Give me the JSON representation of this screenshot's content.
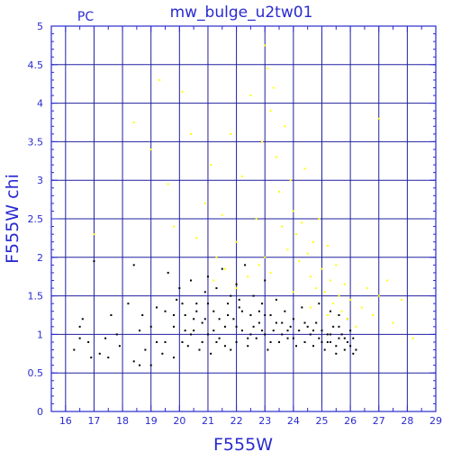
{
  "chart_data": {
    "type": "scatter",
    "title": "mw_bulge_u2tw01",
    "corner_label": "PC",
    "xlabel": "F555W",
    "ylabel": "F555W chi",
    "xlim": [
      15.5,
      29
    ],
    "ylim": [
      0,
      5
    ],
    "x_ticks": [
      16,
      17,
      18,
      19,
      20,
      21,
      22,
      23,
      24,
      25,
      26,
      27,
      28,
      29
    ],
    "y_ticks": [
      0,
      0.5,
      1,
      1.5,
      2,
      2.5,
      3,
      3.5,
      4,
      4.5,
      5
    ],
    "grid": true,
    "colors": {
      "frame": "#2a2ad0",
      "grid": "#2020a0",
      "text": "#2a2ad0",
      "good": "#000000",
      "rejected": "#ffff00"
    },
    "series": [
      {
        "color": "#000000",
        "points": [
          [
            16.3,
            0.8
          ],
          [
            16.5,
            1.1
          ],
          [
            16.6,
            1.2
          ],
          [
            16.5,
            0.95
          ],
          [
            16.8,
            0.9
          ],
          [
            16.9,
            0.7
          ],
          [
            17.0,
            1.95
          ],
          [
            17.2,
            0.75
          ],
          [
            17.4,
            0.95
          ],
          [
            17.5,
            0.7
          ],
          [
            17.8,
            1.0
          ],
          [
            17.6,
            1.25
          ],
          [
            17.9,
            0.85
          ],
          [
            18.2,
            1.4
          ],
          [
            18.4,
            0.65
          ],
          [
            18.4,
            1.9
          ],
          [
            18.6,
            1.05
          ],
          [
            18.7,
            1.25
          ],
          [
            18.8,
            0.8
          ],
          [
            18.6,
            0.6
          ],
          [
            19.0,
            0.6
          ],
          [
            19.0,
            1.1
          ],
          [
            19.2,
            1.35
          ],
          [
            19.2,
            0.9
          ],
          [
            19.4,
            0.75
          ],
          [
            19.5,
            1.3
          ],
          [
            19.6,
            1.8
          ],
          [
            19.8,
            1.1
          ],
          [
            19.8,
            0.7
          ],
          [
            19.9,
            1.45
          ],
          [
            20.0,
            1.6
          ],
          [
            20.1,
            0.9
          ],
          [
            20.2,
            1.25
          ],
          [
            20.3,
            0.85
          ],
          [
            20.4,
            1.7
          ],
          [
            20.5,
            1.05
          ],
          [
            20.6,
            1.4
          ],
          [
            20.7,
            0.8
          ],
          [
            20.8,
            1.15
          ],
          [
            20.9,
            1.55
          ],
          [
            21.0,
            1.0
          ],
          [
            21.0,
            1.75
          ],
          [
            21.1,
            0.75
          ],
          [
            21.2,
            1.3
          ],
          [
            21.3,
            1.6
          ],
          [
            21.4,
            0.95
          ],
          [
            21.5,
            1.85
          ],
          [
            21.6,
            1.1
          ],
          [
            21.7,
            1.4
          ],
          [
            21.8,
            0.8
          ],
          [
            21.9,
            1.2
          ],
          [
            22.0,
            1.65
          ],
          [
            22.0,
            0.9
          ],
          [
            22.1,
            1.35
          ],
          [
            22.2,
            1.05
          ],
          [
            22.3,
            1.9
          ],
          [
            22.4,
            0.85
          ],
          [
            22.5,
            1.25
          ],
          [
            22.6,
            1.5
          ],
          [
            22.7,
            0.95
          ],
          [
            22.8,
            1.15
          ],
          [
            22.9,
            1.4
          ],
          [
            23.0,
            1.0
          ],
          [
            23.0,
            1.7
          ],
          [
            23.1,
            0.8
          ],
          [
            23.2,
            1.25
          ],
          [
            23.3,
            1.05
          ],
          [
            23.4,
            1.45
          ],
          [
            23.5,
            0.9
          ],
          [
            23.6,
            1.15
          ],
          [
            23.7,
            1.3
          ],
          [
            23.8,
            0.95
          ],
          [
            23.9,
            1.1
          ],
          [
            24.0,
            1.2
          ],
          [
            24.1,
            0.85
          ],
          [
            24.2,
            1.05
          ],
          [
            24.3,
            1.35
          ],
          [
            24.4,
            0.9
          ],
          [
            24.5,
            1.1
          ],
          [
            24.6,
            1.0
          ],
          [
            24.7,
            0.85
          ],
          [
            24.8,
            1.15
          ],
          [
            24.9,
            0.95
          ],
          [
            25.0,
            1.05
          ],
          [
            25.1,
            0.8
          ],
          [
            25.2,
            1.0
          ],
          [
            25.3,
            0.9
          ],
          [
            25.4,
            1.1
          ],
          [
            25.5,
            0.85
          ],
          [
            25.6,
            0.95
          ],
          [
            25.7,
            1.0
          ],
          [
            25.8,
            0.8
          ],
          [
            25.9,
            0.9
          ],
          [
            26.0,
            0.85
          ],
          [
            26.1,
            0.95
          ],
          [
            26.2,
            0.8
          ],
          [
            25.9,
            1.2
          ],
          [
            25.6,
            1.25
          ],
          [
            25.3,
            1.3
          ],
          [
            24.9,
            1.4
          ],
          [
            20.5,
            1.2
          ],
          [
            20.8,
            0.9
          ],
          [
            21.2,
            1.05
          ],
          [
            21.6,
            0.85
          ],
          [
            22.0,
            1.1
          ],
          [
            22.4,
            0.95
          ],
          [
            22.8,
            1.3
          ],
          [
            23.2,
            0.9
          ],
          [
            23.6,
            1.0
          ],
          [
            24.0,
            0.95
          ],
          [
            20.2,
            1.05
          ],
          [
            20.6,
            1.3
          ],
          [
            21.0,
            1.4
          ],
          [
            21.4,
            1.2
          ],
          [
            21.8,
            1.5
          ],
          [
            22.2,
            1.3
          ],
          [
            22.6,
            1.1
          ],
          [
            23.0,
            1.25
          ],
          [
            23.4,
            1.15
          ],
          [
            23.8,
            1.05
          ],
          [
            19.5,
            0.9
          ],
          [
            19.8,
            1.25
          ],
          [
            20.1,
            1.4
          ],
          [
            20.4,
            1.0
          ],
          [
            20.9,
            1.2
          ],
          [
            21.3,
            0.9
          ],
          [
            21.7,
            1.25
          ],
          [
            22.1,
            1.45
          ],
          [
            22.5,
            1.0
          ],
          [
            22.9,
            1.05
          ],
          [
            24.4,
            1.15
          ],
          [
            24.7,
            1.05
          ],
          [
            25.0,
            0.9
          ],
          [
            25.3,
            1.0
          ],
          [
            25.6,
            1.1
          ],
          [
            25.8,
            0.95
          ],
          [
            26.0,
            1.05
          ],
          [
            26.1,
            0.75
          ],
          [
            25.5,
            0.75
          ],
          [
            25.2,
            0.9
          ]
        ]
      },
      {
        "color": "#ffff00",
        "points": [
          [
            17.0,
            2.3
          ],
          [
            18.4,
            3.75
          ],
          [
            19.0,
            3.4
          ],
          [
            19.3,
            4.3
          ],
          [
            19.6,
            2.95
          ],
          [
            19.8,
            2.4
          ],
          [
            20.1,
            4.15
          ],
          [
            20.4,
            3.6
          ],
          [
            20.6,
            2.25
          ],
          [
            20.9,
            2.7
          ],
          [
            21.1,
            3.2
          ],
          [
            21.3,
            2.0
          ],
          [
            21.5,
            2.55
          ],
          [
            21.8,
            3.6
          ],
          [
            22.0,
            2.2
          ],
          [
            22.2,
            3.05
          ],
          [
            22.5,
            4.1
          ],
          [
            22.7,
            2.5
          ],
          [
            22.9,
            3.5
          ],
          [
            23.0,
            4.75
          ],
          [
            23.1,
            4.45
          ],
          [
            23.2,
            3.9
          ],
          [
            23.3,
            4.2
          ],
          [
            23.4,
            3.3
          ],
          [
            23.5,
            2.85
          ],
          [
            23.6,
            2.4
          ],
          [
            23.7,
            3.7
          ],
          [
            23.8,
            2.1
          ],
          [
            23.9,
            3.0
          ],
          [
            24.0,
            2.6
          ],
          [
            24.1,
            2.3
          ],
          [
            24.2,
            1.95
          ],
          [
            24.3,
            2.45
          ],
          [
            24.4,
            3.15
          ],
          [
            24.5,
            2.05
          ],
          [
            24.6,
            1.75
          ],
          [
            24.7,
            2.2
          ],
          [
            24.8,
            1.6
          ],
          [
            24.9,
            2.5
          ],
          [
            25.0,
            1.85
          ],
          [
            25.1,
            1.55
          ],
          [
            25.2,
            2.15
          ],
          [
            25.3,
            1.7
          ],
          [
            25.4,
            1.4
          ],
          [
            25.5,
            1.9
          ],
          [
            25.6,
            1.5
          ],
          [
            25.7,
            1.3
          ],
          [
            25.8,
            1.65
          ],
          [
            25.9,
            1.2
          ],
          [
            26.0,
            1.45
          ],
          [
            26.2,
            1.1
          ],
          [
            26.4,
            1.35
          ],
          [
            26.6,
            1.6
          ],
          [
            26.8,
            1.25
          ],
          [
            27.0,
            1.5
          ],
          [
            27.3,
            1.7
          ],
          [
            27.5,
            1.15
          ],
          [
            27.8,
            1.45
          ],
          [
            28.2,
            0.95
          ],
          [
            27.0,
            3.8
          ],
          [
            23.0,
            2.0
          ],
          [
            23.2,
            1.8
          ],
          [
            22.8,
            1.9
          ],
          [
            22.4,
            1.75
          ],
          [
            22.0,
            1.6
          ],
          [
            21.6,
            1.85
          ],
          [
            21.2,
            1.7
          ],
          [
            24.0,
            1.55
          ],
          [
            24.6,
            1.35
          ],
          [
            25.2,
            1.25
          ]
        ]
      }
    ]
  }
}
